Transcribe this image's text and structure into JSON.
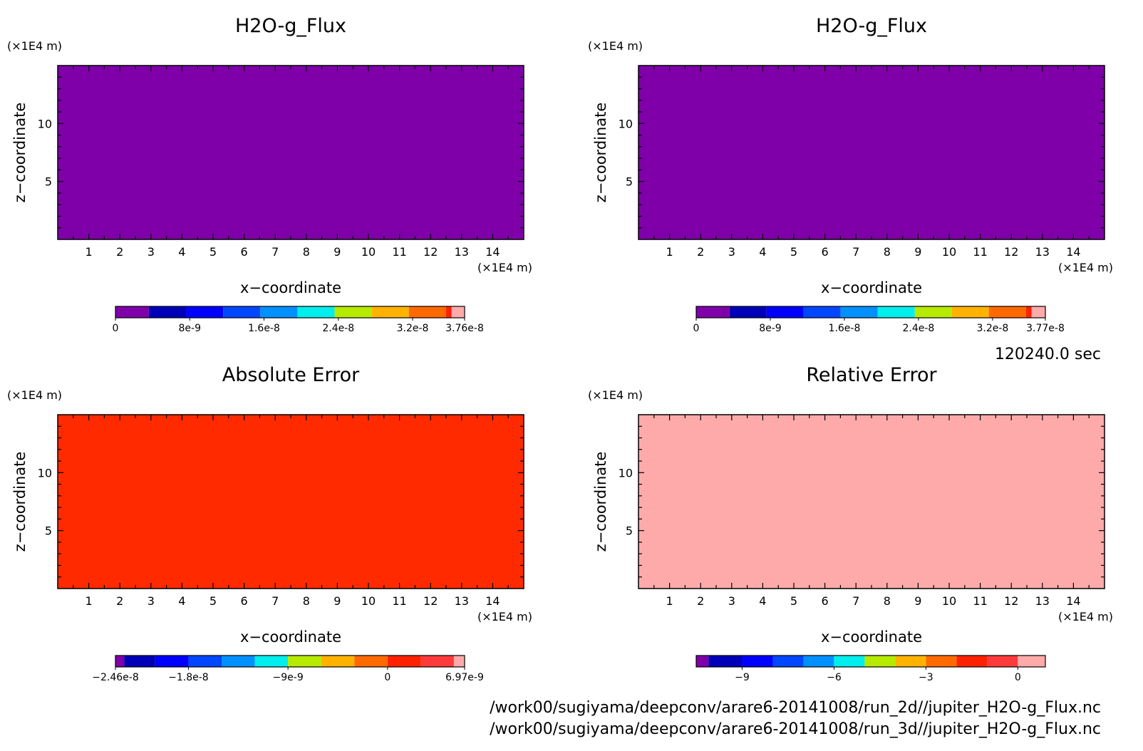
{
  "colors": {
    "frame": "#000000",
    "background": "#ffffff"
  },
  "footer": {
    "time": "120240.0 sec",
    "path_2d": "/work00/sugiyama/deepconv/arare6-20141008/run_2d//jupiter_H2O-g_Flux.nc",
    "path_3d": "/work00/sugiyama/deepconv/arare6-20141008/run_3d//jupiter_H2O-g_Flux.nc"
  },
  "chart_data": [
    {
      "type": "heatmap",
      "title": "H2O-g_Flux",
      "xlabel": "x−coordinate",
      "ylabel": "z−coordinate",
      "x_unit": "(×1E4 m)",
      "z_unit": "(×1E4 m)",
      "xlim": [
        0,
        15
      ],
      "zlim": [
        0,
        15
      ],
      "x_ticks": [
        1,
        2,
        3,
        4,
        5,
        6,
        7,
        8,
        9,
        10,
        11,
        12,
        13,
        14
      ],
      "z_ticks": [
        5,
        10
      ],
      "field_color": "#7f00a9",
      "field_value": 0,
      "colorbar": {
        "range": [
          0,
          3.76e-08
        ],
        "colors": [
          "#7f00a9",
          "#0000b8",
          "#0000ff",
          "#0047ff",
          "#0091ff",
          "#00eeee",
          "#b6ea00",
          "#ffb300",
          "#ff6a00",
          "#ff2200",
          "#ffaaaa"
        ],
        "boundaries": [
          0,
          3.6e-09,
          7.6e-09,
          1.16e-08,
          1.56e-08,
          1.96e-08,
          2.36e-08,
          2.76e-08,
          3.16e-08,
          3.56e-08,
          3.62e-08,
          3.76e-08
        ],
        "labels": [
          "0",
          "8e-9",
          "1.6e-8",
          "2.4e-8",
          "3.2e-8",
          "3.76e-8"
        ],
        "label_values": [
          0,
          8e-09,
          1.6e-08,
          2.4e-08,
          3.2e-08,
          3.76e-08
        ]
      }
    },
    {
      "type": "heatmap",
      "title": "H2O-g_Flux",
      "xlabel": "x−coordinate",
      "ylabel": "z−coordinate",
      "x_unit": "(×1E4 m)",
      "z_unit": "(×1E4 m)",
      "xlim": [
        0,
        15
      ],
      "zlim": [
        0,
        15
      ],
      "x_ticks": [
        1,
        2,
        3,
        4,
        5,
        6,
        7,
        8,
        9,
        10,
        11,
        12,
        13,
        14
      ],
      "z_ticks": [
        5,
        10
      ],
      "field_color": "#7f00a9",
      "field_value": 0,
      "colorbar": {
        "range": [
          0,
          3.77e-08
        ],
        "colors": [
          "#7f00a9",
          "#0000b8",
          "#0000ff",
          "#0047ff",
          "#0091ff",
          "#00eeee",
          "#b6ea00",
          "#ffb300",
          "#ff6a00",
          "#ff2200",
          "#ffaaaa"
        ],
        "boundaries": [
          0,
          3.6e-09,
          7.6e-09,
          1.16e-08,
          1.56e-08,
          1.96e-08,
          2.36e-08,
          2.76e-08,
          3.16e-08,
          3.56e-08,
          3.62e-08,
          3.77e-08
        ],
        "labels": [
          "0",
          "8e-9",
          "1.6e-8",
          "2.4e-8",
          "3.2e-8",
          "3.77e-8"
        ],
        "label_values": [
          0,
          8e-09,
          1.6e-08,
          2.4e-08,
          3.2e-08,
          3.77e-08
        ]
      }
    },
    {
      "type": "heatmap",
      "title": "Absolute Error",
      "xlabel": "x−coordinate",
      "ylabel": "z−coordinate",
      "x_unit": "(×1E4 m)",
      "z_unit": "(×1E4 m)",
      "xlim": [
        0,
        15
      ],
      "zlim": [
        0,
        15
      ],
      "x_ticks": [
        1,
        2,
        3,
        4,
        5,
        6,
        7,
        8,
        9,
        10,
        11,
        12,
        13,
        14
      ],
      "z_ticks": [
        5,
        10
      ],
      "field_color": "#ff2a00",
      "field_value": 0,
      "colorbar": {
        "range": [
          -2.46e-08,
          6.97e-09
        ],
        "colors": [
          "#7f00a9",
          "#0000b8",
          "#0000ff",
          "#0047ff",
          "#0091ff",
          "#00eeee",
          "#b6ea00",
          "#ffb300",
          "#ff6a00",
          "#ff2200",
          "#ff3a3a",
          "#ffaaaa"
        ],
        "boundaries": [
          -2.46e-08,
          -2.38e-08,
          -2.1e-08,
          -1.8e-08,
          -1.5e-08,
          -1.2e-08,
          -9e-09,
          -6e-09,
          -3e-09,
          0,
          3e-09,
          6e-09,
          6.97e-09
        ],
        "labels": [
          "-2.46e-8",
          "-1.8e-8",
          "-9e-9",
          "0",
          "6.97e-9"
        ],
        "label_values": [
          -2.46e-08,
          -1.8e-08,
          -9e-09,
          0,
          6.97e-09
        ]
      }
    },
    {
      "type": "heatmap",
      "title": "Relative Error",
      "xlabel": "x−coordinate",
      "ylabel": "z−coordinate",
      "x_unit": "(×1E4 m)",
      "z_unit": "(×1E4 m)",
      "xlim": [
        0,
        15
      ],
      "zlim": [
        0,
        15
      ],
      "x_ticks": [
        1,
        2,
        3,
        4,
        5,
        6,
        7,
        8,
        9,
        10,
        11,
        12,
        13,
        14
      ],
      "z_ticks": [
        5,
        10
      ],
      "field_color": "#ffaaaa",
      "field_value": 0,
      "colorbar": {
        "range": [
          -10.5,
          0.9
        ],
        "colors": [
          "#7f00a9",
          "#0000b8",
          "#0000ff",
          "#0047ff",
          "#0091ff",
          "#00eeee",
          "#b6ea00",
          "#ffb300",
          "#ff6a00",
          "#ff2200",
          "#ff3a3a",
          "#ffaaaa"
        ],
        "boundaries": [
          -10.5,
          -10.1,
          -9,
          -8,
          -7,
          -6,
          -5,
          -4,
          -3,
          -2,
          -1,
          0,
          0.9
        ],
        "labels": [
          "-9",
          "-6",
          "-3",
          "0"
        ],
        "label_values": [
          -9,
          -6,
          -3,
          0
        ]
      }
    }
  ]
}
